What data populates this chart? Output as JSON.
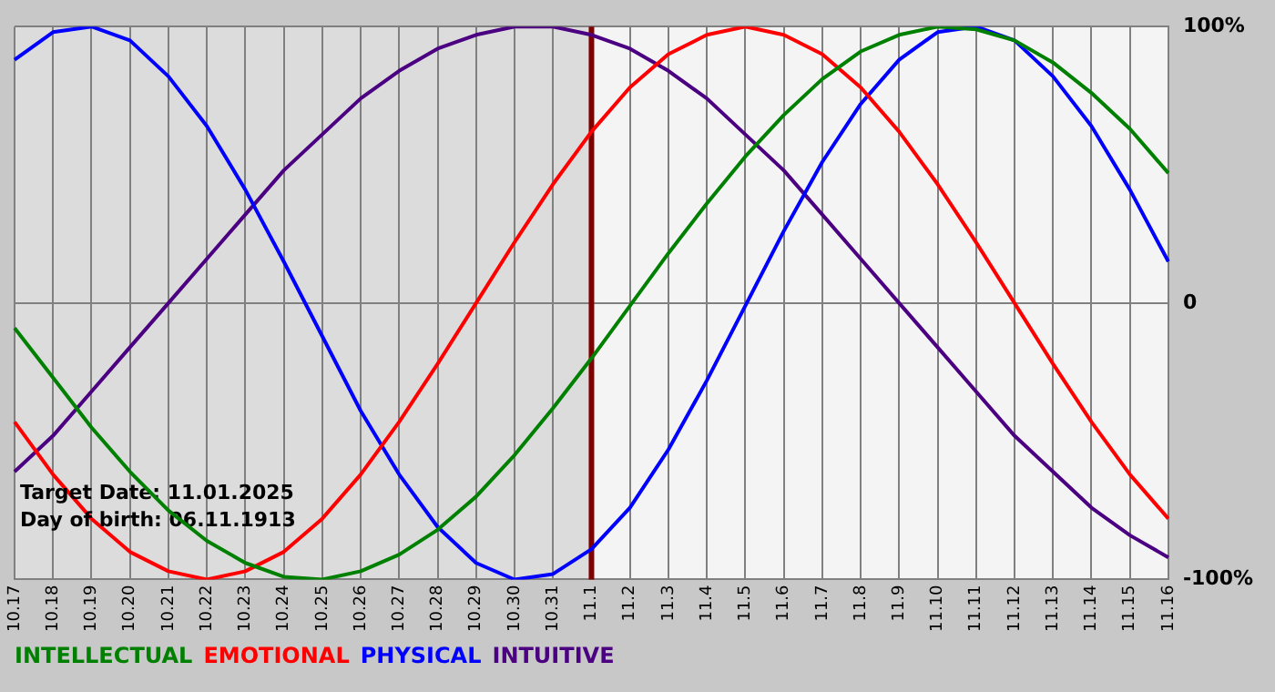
{
  "chart_data": {
    "type": "line",
    "categories": [
      "10.17",
      "10.18",
      "10.19",
      "10.20",
      "10.21",
      "10.22",
      "10.23",
      "10.24",
      "10.25",
      "10.26",
      "10.27",
      "10.28",
      "10.29",
      "10.30",
      "10.31",
      "11.1",
      "11.2",
      "11.3",
      "11.4",
      "11.5",
      "11.6",
      "11.7",
      "11.8",
      "11.9",
      "11.10",
      "11.11",
      "11.12",
      "11.13",
      "11.14",
      "11.15",
      "11.16"
    ],
    "series": [
      {
        "name": "INTELLECTUAL",
        "color": "#008000",
        "values": [
          -9,
          -27,
          -45,
          -61,
          -75,
          -86,
          -94,
          -99,
          -100,
          -97,
          -91,
          -82,
          -70,
          -55,
          -38,
          -20,
          -1,
          18,
          36,
          53,
          68,
          81,
          91,
          97,
          100,
          99,
          95,
          87,
          76,
          63,
          47
        ]
      },
      {
        "name": "EMOTIONAL",
        "color": "#ff0000",
        "values": [
          -43,
          -62,
          -78,
          -90,
          -97,
          -100,
          -97,
          -90,
          -78,
          -62,
          -43,
          -22,
          0,
          22,
          43,
          62,
          78,
          90,
          97,
          100,
          97,
          90,
          78,
          62,
          43,
          22,
          0,
          -22,
          -43,
          -62,
          -78
        ]
      },
      {
        "name": "PHYSICAL",
        "color": "#0000ff",
        "values": [
          88,
          98,
          100,
          95,
          82,
          64,
          41,
          15,
          -12,
          -39,
          -62,
          -81,
          -94,
          -100,
          -98,
          -89,
          -74,
          -53,
          -28,
          -1,
          26,
          51,
          72,
          88,
          98,
          100,
          95,
          82,
          64,
          41,
          15
        ]
      },
      {
        "name": "INTUITIVE",
        "color": "#4b0082",
        "values": [
          -61,
          -48,
          -32,
          -16,
          0,
          16,
          32,
          48,
          61,
          74,
          84,
          92,
          97,
          100,
          100,
          97,
          92,
          84,
          74,
          61,
          48,
          32,
          16,
          0,
          -16,
          -32,
          -48,
          -61,
          -74,
          -84,
          -92
        ]
      }
    ],
    "ylim": [
      -100,
      100
    ],
    "yticks": [
      {
        "value": 100,
        "label": "100%"
      },
      0,
      {
        "value": -100,
        "label": "-100%"
      }
    ],
    "grid": true,
    "legend": "bottom left",
    "marker": "none",
    "line_style": "solid",
    "ref_lines": [
      {
        "axis": "x",
        "value": "11.1",
        "color": "#800000"
      }
    ],
    "bands": [
      {
        "axis": "x",
        "from": "10.17",
        "to": "11.1",
        "color": "#dcdcdc"
      }
    ],
    "annotations": [
      "Target Date: 11.01.2025",
      "Day of birth: 06.11.1913"
    ]
  }
}
